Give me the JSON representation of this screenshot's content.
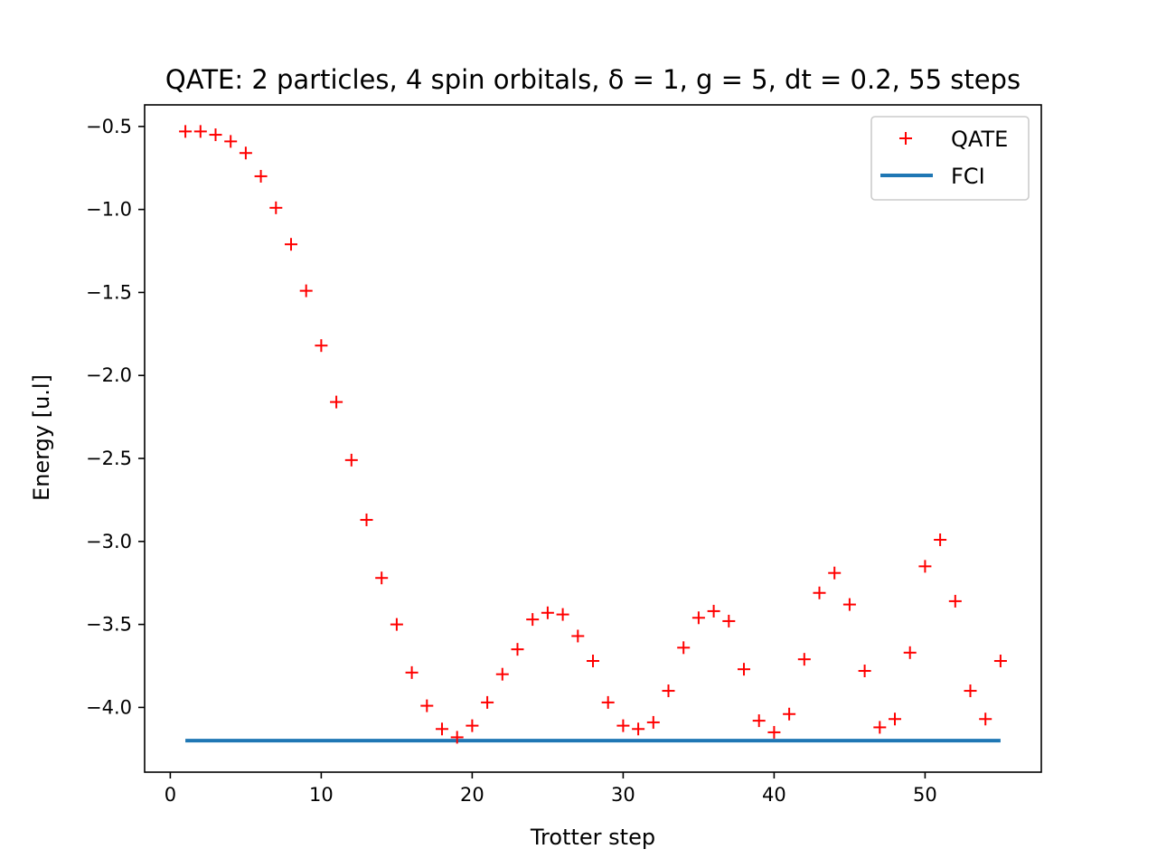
{
  "chart_data": {
    "type": "scatter",
    "title": "QATE: 2 particles, 4 spin orbitals, δ = 1, g = 5, dt = 0.2, 55 steps",
    "xlabel": "Trotter step",
    "ylabel": "Energy [u.l]",
    "xlim": [
      -1.7,
      57.7
    ],
    "ylim": [
      -4.39,
      -0.37
    ],
    "xticks": [
      0,
      10,
      20,
      30,
      40,
      50
    ],
    "xtick_labels": [
      "0",
      "10",
      "20",
      "30",
      "40",
      "50"
    ],
    "yticks": [
      -0.5,
      -1.0,
      -1.5,
      -2.0,
      -2.5,
      -3.0,
      -3.5,
      -4.0
    ],
    "ytick_labels": [
      "−0.5",
      "−1.0",
      "−1.5",
      "−2.0",
      "−2.5",
      "−3.0",
      "−3.5",
      "−4.0"
    ],
    "grid": false,
    "legend_position": "top-right",
    "series": [
      {
        "name": "QATE",
        "marker": "+",
        "color": "#ff0000",
        "x": [
          1,
          2,
          3,
          4,
          5,
          6,
          7,
          8,
          9,
          10,
          11,
          12,
          13,
          14,
          15,
          16,
          17,
          18,
          19,
          20,
          21,
          22,
          23,
          24,
          25,
          26,
          27,
          28,
          29,
          30,
          31,
          32,
          33,
          34,
          35,
          36,
          37,
          38,
          39,
          40,
          41,
          42,
          43,
          44,
          45,
          46,
          47,
          48,
          49,
          50,
          51,
          52,
          53,
          54,
          55
        ],
        "y": [
          -0.53,
          -0.53,
          -0.55,
          -0.59,
          -0.66,
          -0.8,
          -0.99,
          -1.21,
          -1.49,
          -1.82,
          -2.16,
          -2.51,
          -2.87,
          -3.22,
          -3.5,
          -3.79,
          -3.99,
          -4.13,
          -4.18,
          -4.11,
          -3.97,
          -3.8,
          -3.65,
          -3.47,
          -3.43,
          -3.44,
          -3.57,
          -3.72,
          -3.97,
          -4.11,
          -4.13,
          -4.09,
          -3.9,
          -3.64,
          -3.46,
          -3.42,
          -3.48,
          -3.77,
          -4.08,
          -4.15,
          -4.04,
          -3.71,
          -3.31,
          -3.19,
          -3.38,
          -3.78,
          -4.12,
          -4.07,
          -3.67,
          -3.15,
          -2.99,
          -3.36,
          -3.9,
          -4.07,
          -3.72
        ]
      },
      {
        "name": "FCI",
        "marker": "line",
        "color": "#1f77b4",
        "x": [
          1,
          55
        ],
        "y": [
          -4.2,
          -4.2
        ]
      }
    ]
  }
}
